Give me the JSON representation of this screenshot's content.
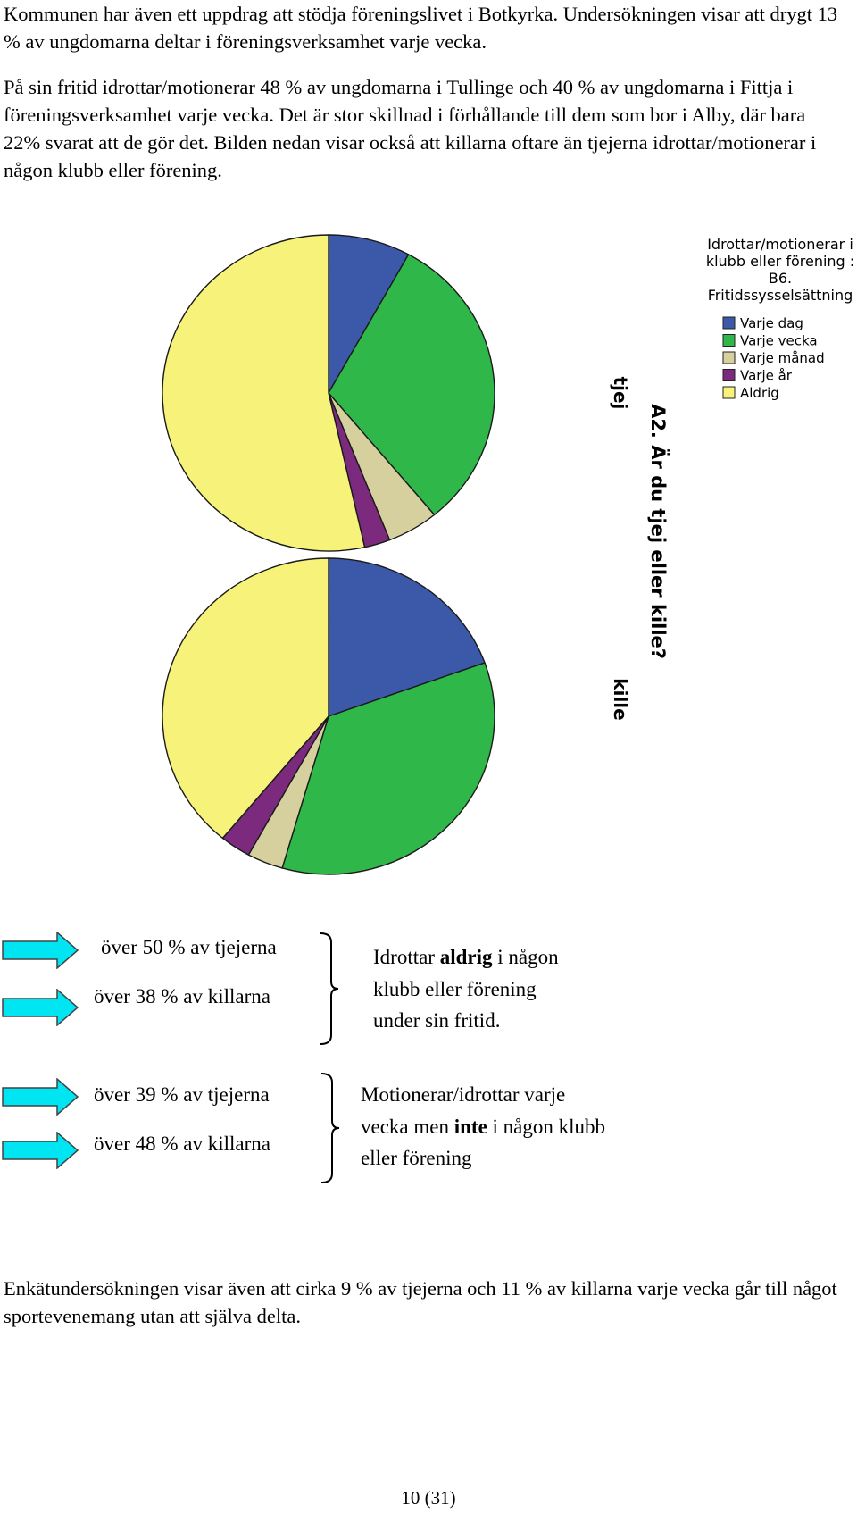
{
  "paragraphs": {
    "intro": "Kommunen har även ett uppdrag att stödja föreningslivet i Botkyrka. Undersökningen visar att drygt 13 % av ungdomarna deltar i föreningsverksamhet varje vecka.",
    "details": "På sin fritid idrottar/motionerar 48 % av ungdomarna i Tullinge och 40 % av ungdomarna i Fittja i föreningsverksamhet varje vecka. Det är stor skillnad i förhållande till dem som bor i Alby, där bara 22% svarat att de gör det. Bilden nedan visar också att killarna oftare än tjejerna idrottar/motionerar i någon klubb eller förening.",
    "closing": "Enkätundersökningen visar även att cirka 9 % av tjejerna och 11 % av killarna varje vecka går till något sportevenemang utan att själva delta."
  },
  "chart_data": {
    "type": "pie",
    "title": "A2. Är du tjej eller kille?",
    "legend": {
      "title_lines": [
        "Idrottar/motionerar i",
        "klubb eller förening :",
        "B6.",
        "Fritidssysselsättning"
      ],
      "placement": "top-right"
    },
    "categories": [
      "Varje dag",
      "Varje vecka",
      "Varje månad",
      "Varje år",
      "Aldrig"
    ],
    "colors": [
      "#3c58a8",
      "#2fb74a",
      "#d6cf9e",
      "#7b2a7e",
      "#f7f37a"
    ],
    "series": [
      {
        "name": "tjej",
        "values": [
          8,
          31,
          5,
          2.5,
          53.5
        ]
      },
      {
        "name": "kille",
        "values": [
          19.5,
          35,
          3.5,
          3,
          39
        ]
      }
    ]
  },
  "summary": {
    "group1": {
      "lines": [
        "över 50 % av tjejerna",
        "över 38 % av killarna"
      ],
      "desc": [
        "Idrottar ",
        "aldrig",
        " i någon",
        "klubb eller förening",
        "under sin fritid."
      ]
    },
    "group2": {
      "lines": [
        "över 39 % av tjejerna",
        "över 48 % av killarna"
      ],
      "desc": [
        "Motionerar/idrottar varje",
        "vecka men ",
        "inte",
        " i någon klubb",
        "eller förening"
      ]
    },
    "arrow_color": "#00e5f2"
  },
  "page_number": "10 (31)"
}
